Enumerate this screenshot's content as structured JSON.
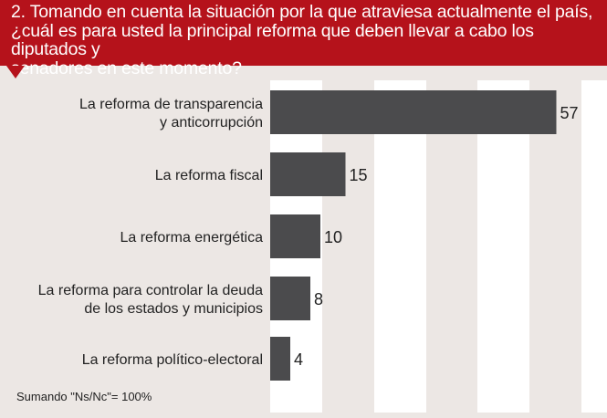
{
  "header": {
    "title": "2. Tomando en cuenta la situación por la que atraviesa actualmente el país, ¿cuál es para usted la principal reforma que deben llevar a cabo los diputados y senadores en este momento?",
    "lines": [
      "2. Tomando en cuenta la situación por la que atraviesa actualmente el país,",
      "¿cuál es para usted la principal reforma que deben llevar a cabo los diputados y",
      "senadores en este momento?"
    ]
  },
  "footnote": "Sumando \"Ns/Nc\"= 100%",
  "colors": {
    "header": "#b5121b",
    "background": "#ece7e4",
    "stripe": "#ffffff",
    "bar": "#4b4b4d",
    "text": "#222222"
  },
  "chart_data": {
    "type": "bar",
    "orientation": "horizontal",
    "categories": [
      [
        "La reforma de transparencia",
        "y anticorrupción"
      ],
      [
        "La reforma fiscal"
      ],
      [
        "La reforma energética"
      ],
      [
        "La reforma para controlar la deuda",
        "de los estados y municipios"
      ],
      [
        "La reforma político-electoral"
      ]
    ],
    "values": [
      57,
      15,
      10,
      8,
      4
    ],
    "value_labels": [
      "57",
      "15",
      "10",
      "8",
      "4"
    ],
    "xlim": [
      0,
      60
    ],
    "grid": "alternating vertical stripes"
  }
}
